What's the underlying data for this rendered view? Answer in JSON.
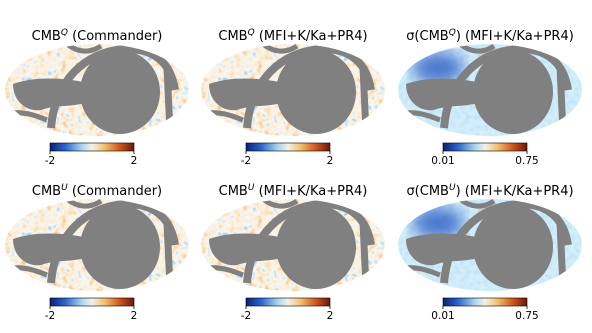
{
  "panels": [
    {
      "title": {
        "pre": "CMB",
        "sup": "Q",
        "post": " (Commander)"
      },
      "clim": [
        -2,
        2
      ],
      "cticks": [
        -2,
        2
      ]
    },
    {
      "title": {
        "pre": "CMB",
        "sup": "Q",
        "post": " (MFI+K/Ka+PR4)"
      },
      "clim": [
        -2,
        2
      ],
      "cticks": [
        -2,
        2
      ]
    },
    {
      "title": {
        "pre": "σ(CMB",
        "sup": "Q",
        "post": ") (MFI+K/Ka+PR4)"
      },
      "clim": [
        0.01,
        0.75
      ],
      "cticks": [
        0.01,
        0.75
      ]
    },
    {
      "title": {
        "pre": "CMB",
        "sup": "U",
        "post": " (Commander)"
      },
      "clim": [
        -2,
        2
      ],
      "cticks": [
        -2,
        2
      ]
    },
    {
      "title": {
        "pre": "CMB",
        "sup": "U",
        "post": " (MFI+K/Ka+PR4)"
      },
      "clim": [
        -2,
        2
      ],
      "cticks": [
        -2,
        2
      ]
    },
    {
      "title": {
        "pre": "σ(CMB",
        "sup": "U",
        "post": ") (MFI+K/Ka+PR4)"
      },
      "clim": [
        0.01,
        0.75
      ],
      "cticks": [
        0.01,
        0.75
      ]
    }
  ]
}
